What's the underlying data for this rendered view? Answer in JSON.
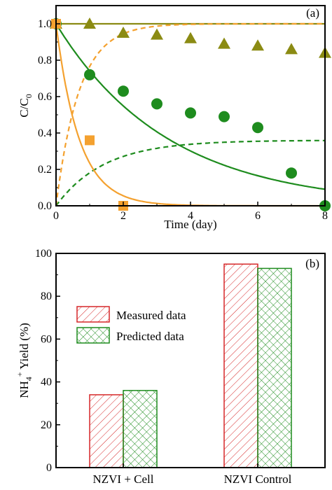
{
  "colors": {
    "olive": "#8b8b13",
    "green": "#1e8c1e",
    "orange": "#f4a12f",
    "red": "#d62728",
    "axis": "#000000"
  },
  "chart_data": [
    {
      "panel_label": "(a)",
      "type": "scatter",
      "xlabel": "Time (day)",
      "ylabel_main": "C/C",
      "ylabel_sub": "0",
      "xlim": [
        0,
        8
      ],
      "ylim": [
        0,
        1.1
      ],
      "xticks": [
        "0",
        "2",
        "4",
        "6",
        "8"
      ],
      "yticks": [
        "0.0",
        "0.2",
        "0.4",
        "0.6",
        "0.8",
        "1.0"
      ],
      "series": [
        {
          "color": "olive",
          "marker": "triangle",
          "points": [
            [
              0,
              1.0
            ],
            [
              1,
              1.0
            ],
            [
              2,
              0.95
            ],
            [
              3,
              0.94
            ],
            [
              4,
              0.92
            ],
            [
              5,
              0.89
            ],
            [
              6,
              0.88
            ],
            [
              7,
              0.86
            ],
            [
              8,
              0.84
            ]
          ],
          "line": {
            "style": "solid",
            "kind": "flat",
            "value": 1.0
          }
        },
        {
          "color": "green",
          "marker": "circle",
          "points": [
            [
              0,
              1.0
            ],
            [
              1,
              0.72
            ],
            [
              2,
              0.63
            ],
            [
              3,
              0.56
            ],
            [
              4,
              0.51
            ],
            [
              5,
              0.49
            ],
            [
              6,
              0.43
            ],
            [
              7,
              0.18
            ],
            [
              8,
              0.0
            ]
          ],
          "line": {
            "style": "solid",
            "kind": "decay",
            "rate": 0.3
          }
        },
        {
          "color": "green",
          "marker": "none",
          "line": {
            "style": "dashed",
            "kind": "rise",
            "plateau": 0.36,
            "rate": 0.7
          }
        },
        {
          "color": "orange",
          "marker": "square",
          "points": [
            [
              0,
              1.0
            ],
            [
              1,
              0.36
            ],
            [
              2,
              0.0
            ]
          ],
          "line": {
            "style": "solid",
            "kind": "decay",
            "rate": 1.45
          }
        },
        {
          "color": "orange",
          "marker": "none",
          "line": {
            "style": "dashed",
            "kind": "rise",
            "plateau": 1.0,
            "rate": 1.45
          }
        }
      ]
    },
    {
      "panel_label": "(b)",
      "type": "bar",
      "ylabel_main": "NH",
      "ylabel_sub": "4",
      "ylabel_sup": "+",
      "ylabel_rest": " Yield (%)",
      "ylim": [
        0,
        100
      ],
      "yticks": [
        "0",
        "20",
        "40",
        "60",
        "80",
        "100"
      ],
      "categories": [
        "NZVI + Cell",
        "NZVI Control"
      ],
      "series": [
        {
          "name": "Measured data",
          "color": "red",
          "pattern": "hatch",
          "values": [
            34,
            95
          ]
        },
        {
          "name": "Predicted data",
          "color": "green",
          "pattern": "cross",
          "values": [
            36,
            93
          ]
        }
      ]
    }
  ]
}
